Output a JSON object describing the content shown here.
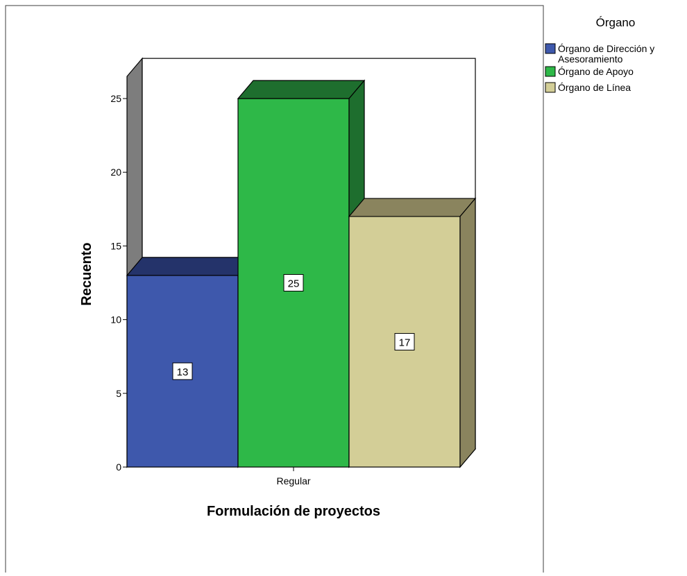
{
  "chart_data": {
    "type": "bar",
    "style": "3d-clustered",
    "categories": [
      "Regular"
    ],
    "series": [
      {
        "name": "Órgano de Dirección y Asesoramiento",
        "values": [
          13
        ],
        "color": "#3e58ac",
        "top_color": "#24336a",
        "side_color": "#1f3466"
      },
      {
        "name": "Órgano de Apoyo",
        "values": [
          25
        ],
        "color": "#2eb848",
        "top_color": "#1e6e2e",
        "side_color": "#1e6e2e"
      },
      {
        "name": "Órgano de Línea",
        "values": [
          17
        ],
        "color": "#d3ce97",
        "top_color": "#8a845e",
        "side_color": "#8a845e"
      }
    ],
    "xlabel": "Formulación de proyectos",
    "ylabel": "Recuento",
    "ylim": [
      0,
      26.5
    ],
    "yticks": [
      0,
      5,
      10,
      15,
      20,
      25
    ],
    "legend": {
      "title": "Órgano",
      "position": "top-right"
    },
    "data_labels": true,
    "grid": false
  }
}
